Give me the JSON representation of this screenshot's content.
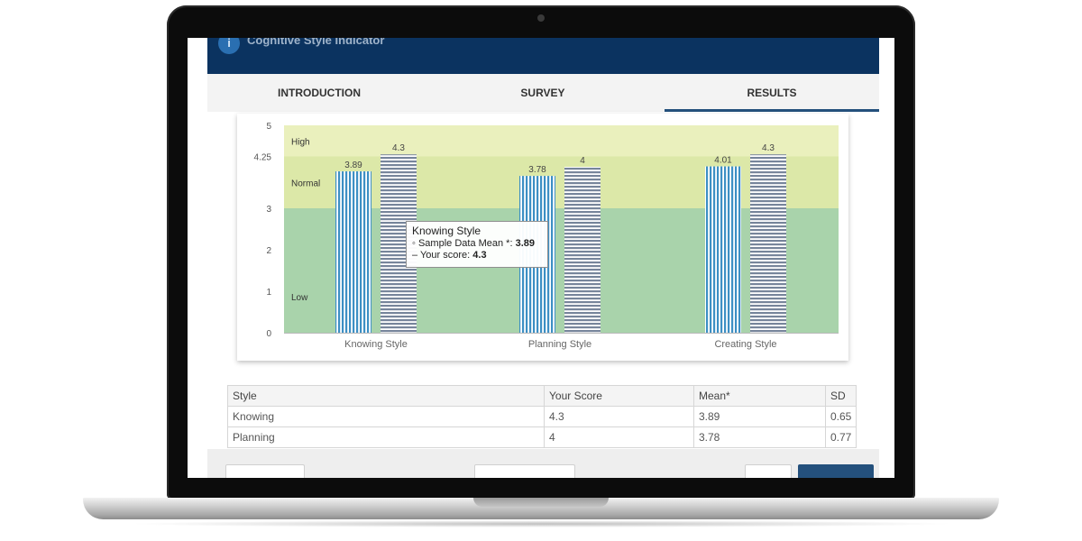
{
  "app": {
    "header_title": "Cognitive Style Indicator"
  },
  "tabs": [
    {
      "label": "INTRODUCTION",
      "active": false
    },
    {
      "label": "SURVEY",
      "active": false
    },
    {
      "label": "RESULTS",
      "active": true
    }
  ],
  "chart_data": {
    "type": "bar",
    "categories": [
      "Knowing Style",
      "Planning Style",
      "Creating Style"
    ],
    "series": [
      {
        "values": [
          3.89,
          3.78,
          4.01
        ],
        "color": "#3d8fc4",
        "pattern": "vertical-stripes"
      },
      {
        "values": [
          4.3,
          4,
          4.3
        ],
        "color": "#77859b",
        "pattern": "horizontal-stripes"
      }
    ],
    "data_labels": [
      [
        "3.89",
        "3.78",
        "4.01"
      ],
      [
        "4.3",
        "4",
        "4.3"
      ]
    ],
    "y_ticks": [
      "0",
      "1",
      "2",
      "3",
      "4.25",
      "5"
    ],
    "y_tick_values": [
      0,
      1,
      2,
      3,
      4.25,
      5
    ],
    "ylim": [
      0,
      5
    ],
    "bands": [
      {
        "label": "Low",
        "from": 0,
        "to": 3,
        "color": "#a9d3ab"
      },
      {
        "label": "Normal",
        "from": 3,
        "to": 4.25,
        "color": "#dce8a8"
      },
      {
        "label": "High",
        "from": 4.25,
        "to": 5,
        "color": "#eaf0bd"
      }
    ],
    "tooltip": {
      "title": "Knowing Style",
      "mean_label": "Sample Data Mean *:",
      "mean_value": "3.89",
      "score_label": "Your score:",
      "score_value": "4.3"
    }
  },
  "table": {
    "headers": [
      "Style",
      "Your Score",
      "Mean*",
      "SD"
    ],
    "rows": [
      [
        "Knowing",
        "4.3",
        "3.89",
        "0.65"
      ],
      [
        "Planning",
        "4",
        "3.78",
        "0.77"
      ]
    ]
  }
}
